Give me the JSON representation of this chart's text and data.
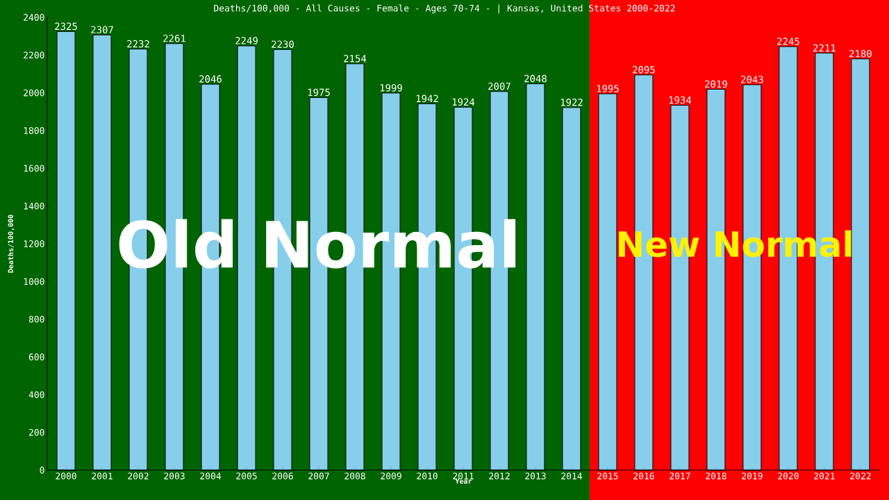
{
  "chart_data": {
    "type": "bar",
    "title": "Deaths/100,000 - All Causes - Female - Ages 70-74 -  | Kansas, United States 2000-2022",
    "xlabel": "Year",
    "ylabel": "Deaths/100,000",
    "categories": [
      "2000",
      "2001",
      "2002",
      "2003",
      "2004",
      "2005",
      "2006",
      "2007",
      "2008",
      "2009",
      "2010",
      "2011",
      "2012",
      "2013",
      "2014",
      "2015",
      "2016",
      "2017",
      "2018",
      "2019",
      "2020",
      "2021",
      "2022"
    ],
    "values": [
      2325,
      2307,
      2232,
      2261,
      2046,
      2249,
      2230,
      1975,
      2154,
      1999,
      1942,
      1924,
      2007,
      2048,
      1922,
      1995,
      2095,
      1934,
      2019,
      2043,
      2245,
      2211,
      2180
    ],
    "color": "#87ceeb",
    "data_labels": true,
    "ylim": [
      0,
      2400
    ],
    "yticks": [
      0,
      200,
      400,
      600,
      800,
      1000,
      1200,
      1400,
      1600,
      1800,
      2000,
      2200,
      2400
    ],
    "bands": [
      {
        "axis": "x",
        "from": "2000",
        "to": "2014",
        "label": "Old Normal",
        "color": "#006400"
      },
      {
        "axis": "x",
        "from": "2015",
        "to": "2022",
        "label": "New Normal",
        "color": "#ff0000"
      }
    ]
  }
}
